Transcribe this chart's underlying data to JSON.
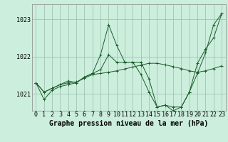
{
  "background_color": "#cceedd",
  "grid_color": "#99bbaa",
  "line_color": "#1a5c2a",
  "marker_color": "#1a5c2a",
  "xlabel": "Graphe pression niveau de la mer (hPa)",
  "xlabel_fontsize": 7,
  "tick_fontsize": 6,
  "ytick_labels": [
    "1021",
    "1022",
    "1023"
  ],
  "ytick_values": [
    1021,
    1022,
    1023
  ],
  "ylim": [
    1020.55,
    1023.4
  ],
  "xlim": [
    -0.5,
    23.5
  ],
  "xtick_values": [
    0,
    1,
    2,
    3,
    4,
    5,
    6,
    7,
    8,
    9,
    10,
    11,
    12,
    13,
    14,
    15,
    16,
    17,
    18,
    19,
    20,
    21,
    22,
    23
  ],
  "series": [
    [
      1021.3,
      1020.85,
      1021.1,
      1021.2,
      1021.25,
      1021.3,
      1021.45,
      1021.55,
      1022.05,
      1022.85,
      1022.3,
      1021.85,
      1021.85,
      1021.85,
      1021.4,
      1020.65,
      1020.7,
      1020.55,
      1020.65,
      1021.05,
      1021.55,
      1022.1,
      1022.85,
      1023.15
    ],
    [
      1021.3,
      1021.05,
      1021.15,
      1021.25,
      1021.3,
      1021.32,
      1021.42,
      1021.52,
      1021.55,
      1021.58,
      1021.62,
      1021.67,
      1021.72,
      1021.77,
      1021.82,
      1021.82,
      1021.78,
      1021.73,
      1021.68,
      1021.62,
      1021.58,
      1021.62,
      1021.68,
      1021.75
    ],
    [
      1021.3,
      1021.05,
      1021.15,
      1021.25,
      1021.35,
      1021.3,
      1021.45,
      1021.55,
      1021.65,
      1022.05,
      1021.85,
      1021.85,
      1021.85,
      1021.52,
      1021.05,
      1020.65,
      1020.7,
      1020.65,
      1020.65,
      1021.05,
      1021.82,
      1022.2,
      1022.5,
      1023.15
    ]
  ]
}
